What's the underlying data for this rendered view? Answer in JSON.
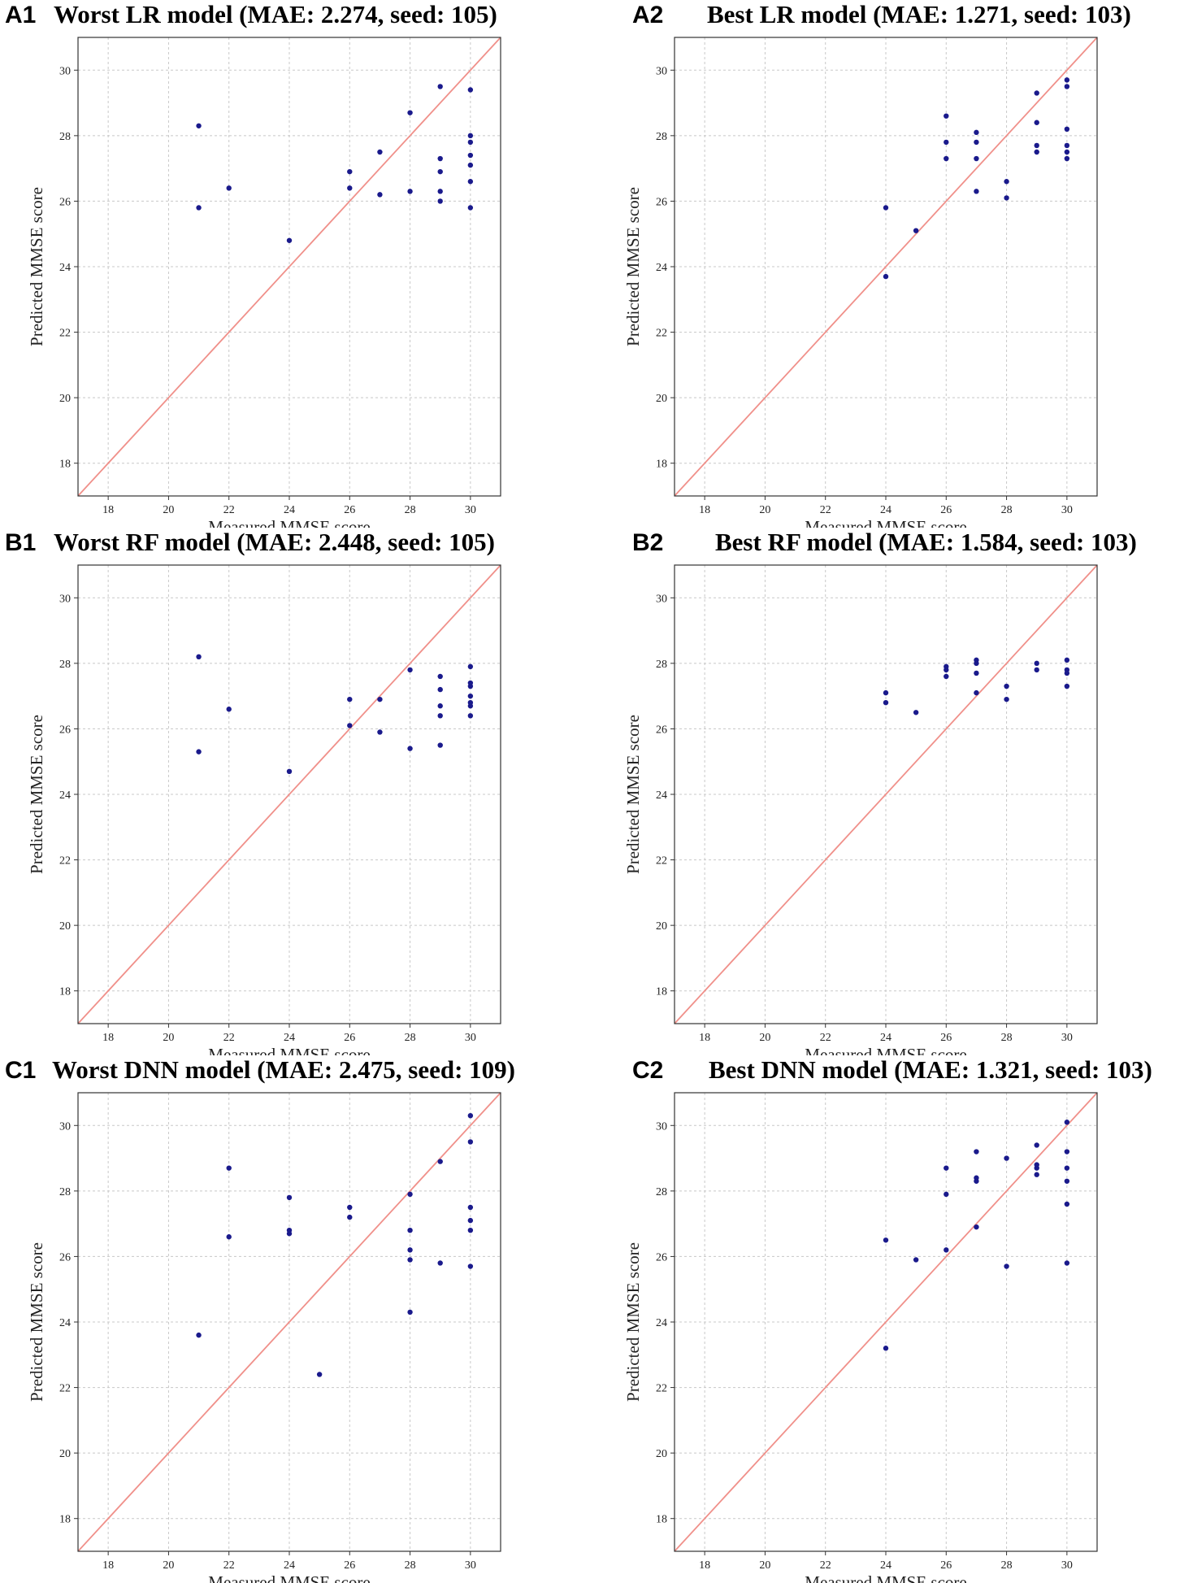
{
  "chart_data": [
    {
      "type": "scatter",
      "label": "A1",
      "title": "Worst LR model (MAE: 2.274, seed: 105)",
      "xlabel": "Measured MMSE score",
      "ylabel": "Predicted MMSE score",
      "xlim": [
        17,
        31
      ],
      "ylim": [
        17,
        31
      ],
      "xticks": [
        18,
        20,
        22,
        24,
        26,
        28,
        30
      ],
      "yticks": [
        18,
        20,
        22,
        24,
        26,
        28,
        30
      ],
      "grid": true,
      "reference_line": "y = x",
      "points": [
        [
          21,
          28.3
        ],
        [
          21,
          25.8
        ],
        [
          22,
          26.4
        ],
        [
          24,
          24.8
        ],
        [
          26,
          26.9
        ],
        [
          26,
          26.4
        ],
        [
          27,
          27.5
        ],
        [
          27,
          26.2
        ],
        [
          28,
          28.7
        ],
        [
          28,
          26.3
        ],
        [
          29,
          29.5
        ],
        [
          29,
          27.3
        ],
        [
          29,
          26.9
        ],
        [
          29,
          26.3
        ],
        [
          29,
          26.0
        ],
        [
          30,
          29.4
        ],
        [
          30,
          28.0
        ],
        [
          30,
          27.8
        ],
        [
          30,
          27.4
        ],
        [
          30,
          27.1
        ],
        [
          30,
          26.6
        ],
        [
          30,
          25.8
        ]
      ]
    },
    {
      "type": "scatter",
      "label": "A2",
      "title": "Best LR model (MAE: 1.271, seed: 103)",
      "xlabel": "Measured MMSE score",
      "ylabel": "Predicted MMSE score",
      "xlim": [
        17,
        31
      ],
      "ylim": [
        17,
        31
      ],
      "xticks": [
        18,
        20,
        22,
        24,
        26,
        28,
        30
      ],
      "yticks": [
        18,
        20,
        22,
        24,
        26,
        28,
        30
      ],
      "grid": true,
      "reference_line": "y = x",
      "points": [
        [
          24,
          25.8
        ],
        [
          24,
          23.7
        ],
        [
          25,
          25.1
        ],
        [
          26,
          28.6
        ],
        [
          26,
          27.8
        ],
        [
          26,
          27.3
        ],
        [
          27,
          28.1
        ],
        [
          27,
          27.8
        ],
        [
          27,
          27.3
        ],
        [
          27,
          26.3
        ],
        [
          28,
          26.6
        ],
        [
          28,
          26.1
        ],
        [
          29,
          29.3
        ],
        [
          29,
          28.4
        ],
        [
          29,
          27.7
        ],
        [
          29,
          27.5
        ],
        [
          30,
          29.7
        ],
        [
          30,
          29.5
        ],
        [
          30,
          28.2
        ],
        [
          30,
          27.7
        ],
        [
          30,
          27.5
        ],
        [
          30,
          27.3
        ]
      ]
    },
    {
      "type": "scatter",
      "label": "B1",
      "title": "Worst RF model (MAE: 2.448, seed: 105)",
      "xlabel": "Measured MMSE score",
      "ylabel": "Predicted MMSE score",
      "xlim": [
        17,
        31
      ],
      "ylim": [
        17,
        31
      ],
      "xticks": [
        18,
        20,
        22,
        24,
        26,
        28,
        30
      ],
      "yticks": [
        18,
        20,
        22,
        24,
        26,
        28,
        30
      ],
      "grid": true,
      "reference_line": "y = x",
      "points": [
        [
          21,
          28.2
        ],
        [
          21,
          25.3
        ],
        [
          22,
          26.6
        ],
        [
          24,
          24.7
        ],
        [
          26,
          26.9
        ],
        [
          26,
          26.1
        ],
        [
          27,
          26.9
        ],
        [
          27,
          25.9
        ],
        [
          28,
          27.8
        ],
        [
          28,
          25.4
        ],
        [
          29,
          27.6
        ],
        [
          29,
          27.2
        ],
        [
          29,
          26.7
        ],
        [
          29,
          26.4
        ],
        [
          29,
          25.5
        ],
        [
          30,
          27.9
        ],
        [
          30,
          27.4
        ],
        [
          30,
          27.3
        ],
        [
          30,
          27.0
        ],
        [
          30,
          26.8
        ],
        [
          30,
          26.7
        ],
        [
          30,
          26.4
        ]
      ]
    },
    {
      "type": "scatter",
      "label": "B2",
      "title": "Best RF model (MAE: 1.584, seed: 103)",
      "xlabel": "Measured MMSE score",
      "ylabel": "Predicted MMSE score",
      "xlim": [
        17,
        31
      ],
      "ylim": [
        17,
        31
      ],
      "xticks": [
        18,
        20,
        22,
        24,
        26,
        28,
        30
      ],
      "yticks": [
        18,
        20,
        22,
        24,
        26,
        28,
        30
      ],
      "grid": true,
      "reference_line": "y = x",
      "points": [
        [
          24,
          27.1
        ],
        [
          24,
          26.8
        ],
        [
          25,
          26.5
        ],
        [
          26,
          27.9
        ],
        [
          26,
          27.8
        ],
        [
          26,
          27.6
        ],
        [
          27,
          28.1
        ],
        [
          27,
          28.0
        ],
        [
          27,
          27.7
        ],
        [
          27,
          27.1
        ],
        [
          28,
          27.3
        ],
        [
          28,
          26.9
        ],
        [
          29,
          28.0
        ],
        [
          29,
          27.8
        ],
        [
          30,
          28.1
        ],
        [
          30,
          27.8
        ],
        [
          30,
          27.7
        ],
        [
          30,
          27.3
        ]
      ]
    },
    {
      "type": "scatter",
      "label": "C1",
      "title": "Worst DNN model (MAE: 2.475, seed: 109)",
      "xlabel": "Measured MMSE score",
      "ylabel": "Predicted MMSE score",
      "xlim": [
        17,
        31
      ],
      "ylim": [
        17,
        31
      ],
      "xticks": [
        18,
        20,
        22,
        24,
        26,
        28,
        30
      ],
      "yticks": [
        18,
        20,
        22,
        24,
        26,
        28,
        30
      ],
      "grid": true,
      "reference_line": "y = x",
      "points": [
        [
          21,
          23.6
        ],
        [
          22,
          28.7
        ],
        [
          22,
          26.6
        ],
        [
          24,
          27.8
        ],
        [
          24,
          26.8
        ],
        [
          24,
          26.7
        ],
        [
          25,
          22.4
        ],
        [
          26,
          27.5
        ],
        [
          26,
          27.2
        ],
        [
          28,
          27.9
        ],
        [
          28,
          26.8
        ],
        [
          28,
          26.2
        ],
        [
          28,
          25.9
        ],
        [
          28,
          24.3
        ],
        [
          29,
          28.9
        ],
        [
          29,
          25.8
        ],
        [
          30,
          30.3
        ],
        [
          30,
          29.5
        ],
        [
          30,
          27.5
        ],
        [
          30,
          27.1
        ],
        [
          30,
          26.8
        ],
        [
          30,
          25.7
        ]
      ]
    },
    {
      "type": "scatter",
      "label": "C2",
      "title": "Best DNN model (MAE: 1.321, seed: 103)",
      "xlabel": "Measured MMSE score",
      "ylabel": "Predicted MMSE score",
      "xlim": [
        17,
        31
      ],
      "ylim": [
        17,
        31
      ],
      "xticks": [
        18,
        20,
        22,
        24,
        26,
        28,
        30
      ],
      "yticks": [
        18,
        20,
        22,
        24,
        26,
        28,
        30
      ],
      "grid": true,
      "reference_line": "y = x",
      "points": [
        [
          24,
          26.5
        ],
        [
          24,
          23.2
        ],
        [
          25,
          25.9
        ],
        [
          26,
          28.7
        ],
        [
          26,
          27.9
        ],
        [
          26,
          26.2
        ],
        [
          27,
          29.2
        ],
        [
          27,
          28.4
        ],
        [
          27,
          28.3
        ],
        [
          27,
          26.9
        ],
        [
          28,
          29.0
        ],
        [
          28,
          25.7
        ],
        [
          29,
          29.4
        ],
        [
          29,
          28.8
        ],
        [
          29,
          28.7
        ],
        [
          29,
          28.5
        ],
        [
          30,
          30.1
        ],
        [
          30,
          29.2
        ],
        [
          30,
          28.7
        ],
        [
          30,
          28.3
        ],
        [
          30,
          27.6
        ],
        [
          30,
          25.8
        ]
      ]
    }
  ],
  "colors": {
    "points": "#1a1a8c",
    "reference_line": "#f0908a",
    "grid": "#c8c8c8",
    "frame": "#333333"
  }
}
